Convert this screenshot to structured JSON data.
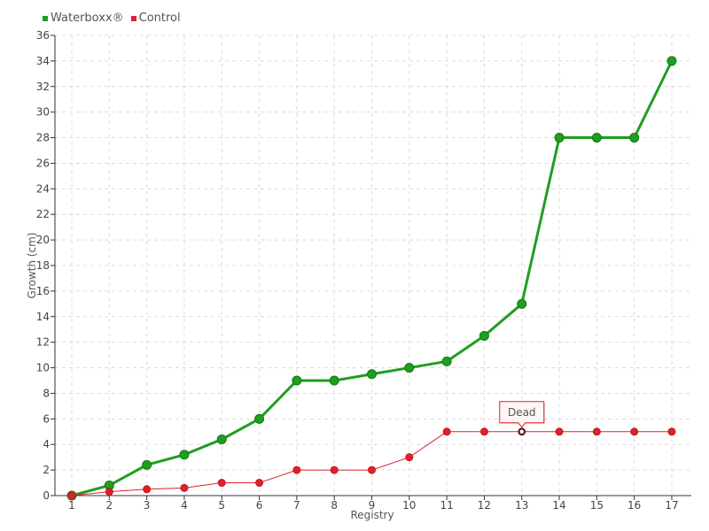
{
  "chart_data": {
    "type": "line",
    "xlabel": "Registry",
    "ylabel": "Growth (cm)",
    "categories": [
      "1",
      "2",
      "3",
      "4",
      "5",
      "6",
      "7",
      "8",
      "9",
      "10",
      "11",
      "12",
      "13",
      "14",
      "15",
      "16",
      "17"
    ],
    "ylim": [
      0,
      36
    ],
    "ytick_step": 2,
    "grid": true,
    "legend_position": "top-left",
    "series": [
      {
        "name": "Waterboxx®",
        "color": "#1f9e1f",
        "values": [
          0,
          0.8,
          2.4,
          3.2,
          4.4,
          6,
          9,
          9,
          9.5,
          10,
          10.5,
          12.5,
          15,
          28,
          28,
          28,
          34
        ]
      },
      {
        "name": "Control",
        "color": "#e0202a",
        "values": [
          0,
          0.3,
          0.5,
          0.6,
          1,
          1,
          2,
          2,
          2,
          3,
          5,
          5,
          5,
          5,
          5,
          5,
          5
        ]
      }
    ],
    "annotations": [
      {
        "series": "Control",
        "category": "13",
        "text": "Dead"
      }
    ]
  }
}
